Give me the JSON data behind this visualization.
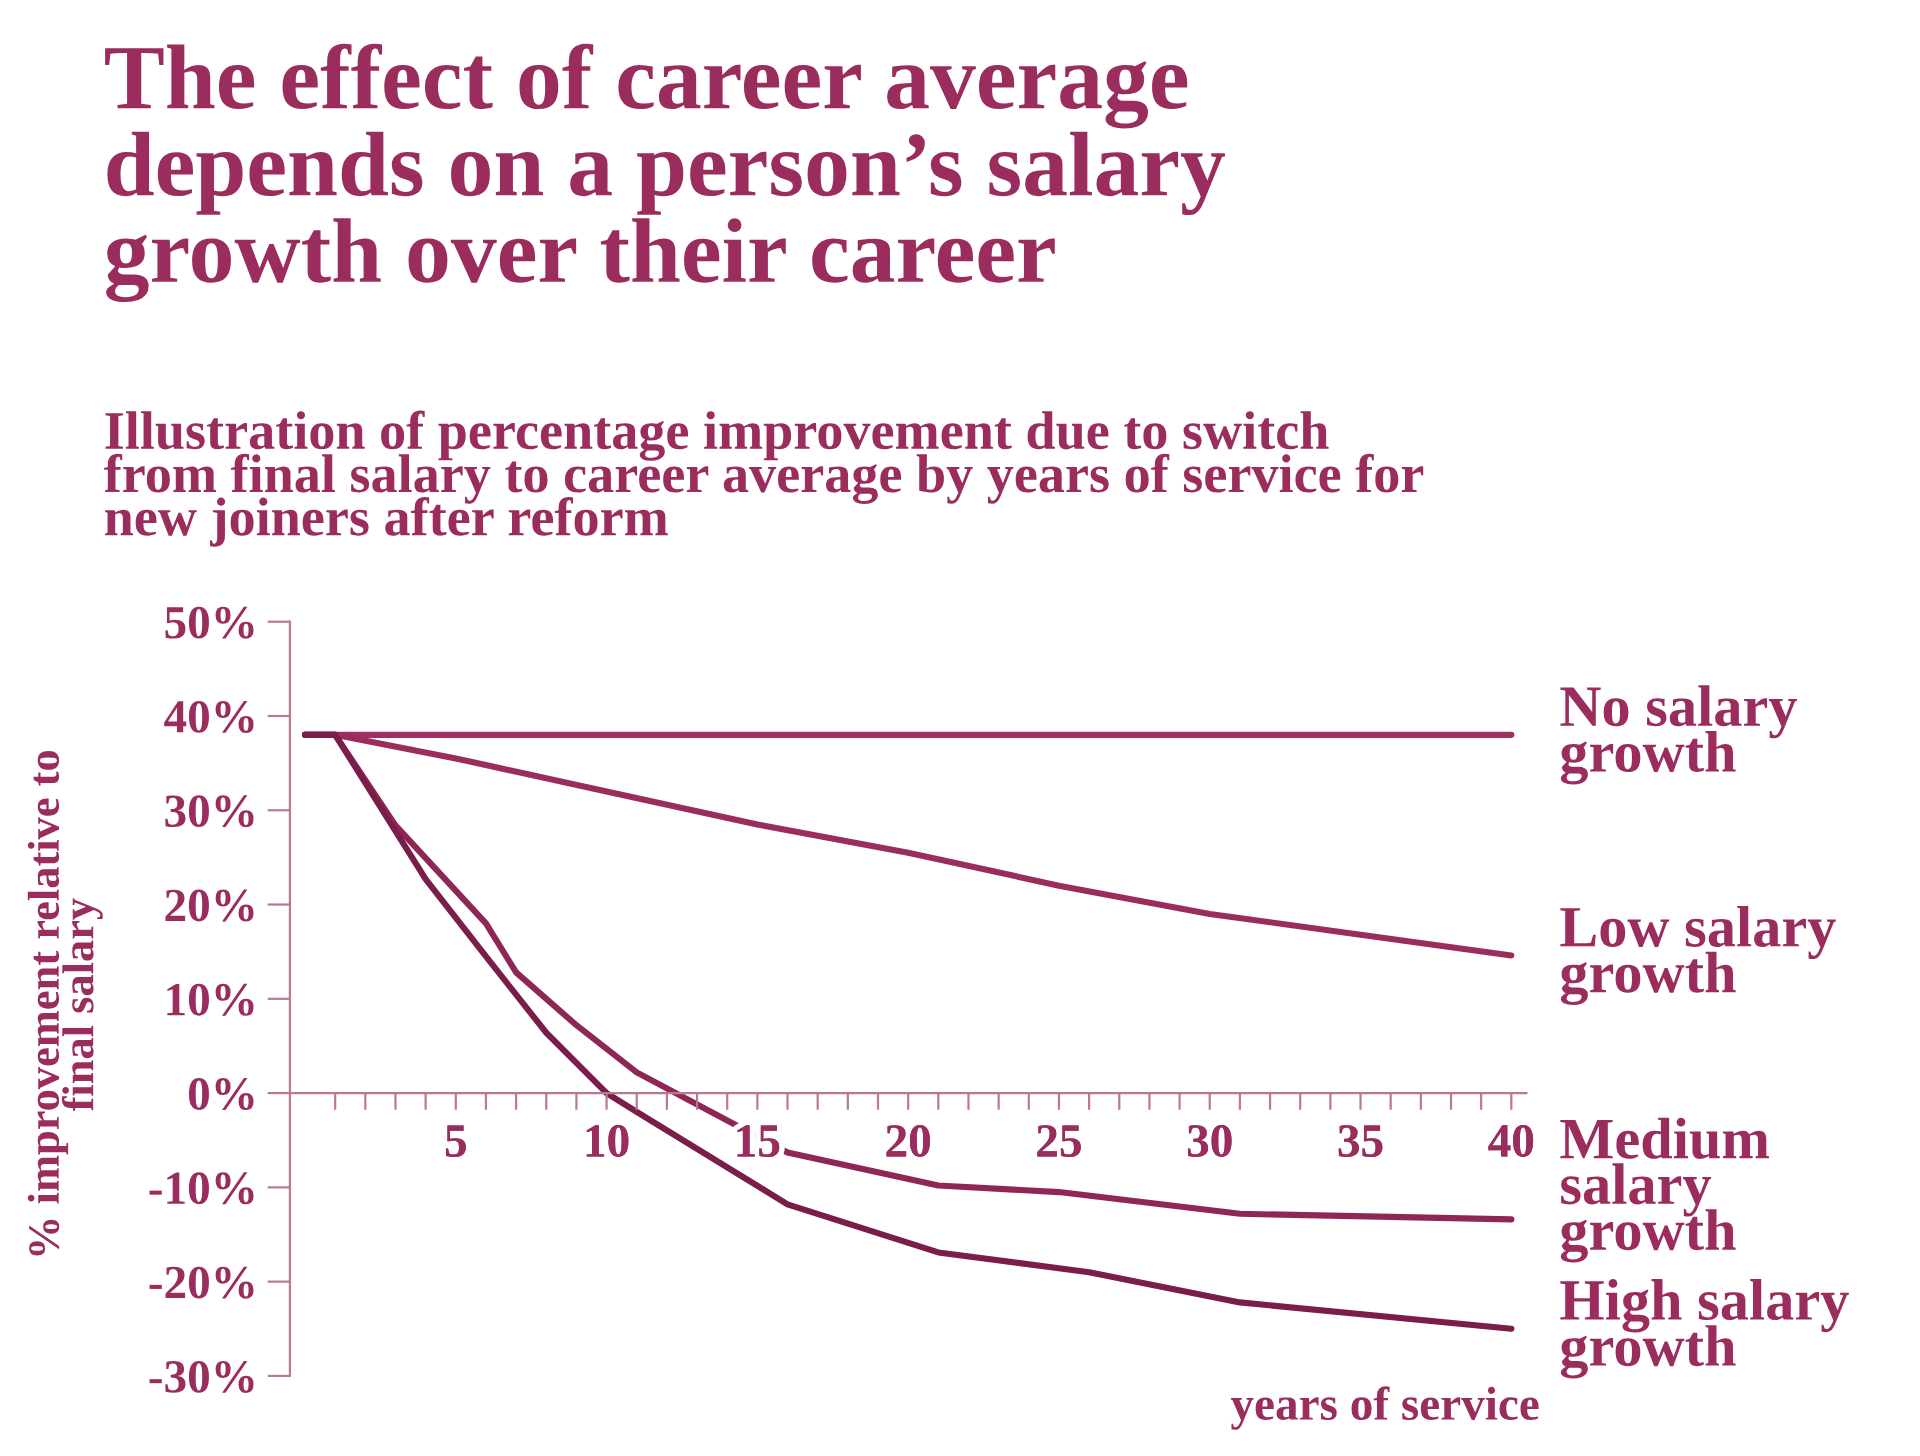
{
  "chart_data": {
    "type": "line",
    "title": "The effect of career average\ndepends on a person’s salary\ngrowth over their career",
    "subtitle": "Illustration of percentage improvement due to switch\nfrom final salary to career average by years of service for\nnew joiners after reform",
    "xlabel": "years of service",
    "ylabel": "% improvement relative to\nfinal salary",
    "series": [
      {
        "name": "No salary\ngrowth",
        "color": "#a0305f",
        "x": [
          0,
          1,
          40
        ],
        "values": [
          38,
          38,
          38
        ]
      },
      {
        "name": "Low salary\ngrowth",
        "color": "#9a2d5c",
        "x": [
          0,
          1,
          5,
          10,
          15,
          20,
          25,
          30,
          35,
          40
        ],
        "values": [
          38,
          38,
          35.5,
          32,
          28.5,
          25.5,
          22,
          19,
          16.8,
          14.6
        ]
      },
      {
        "name": "Medium\nsalary\ngrowth",
        "color": "#8e2656",
        "x": [
          0,
          1,
          3,
          6,
          7,
          9,
          11,
          16,
          21,
          25,
          31,
          40
        ],
        "values": [
          38,
          38,
          28.4,
          18,
          12.8,
          7.2,
          2.2,
          -6.3,
          -9.8,
          -10.5,
          -12.8,
          -13.4
        ]
      },
      {
        "name": "High salary\ngrowth",
        "color": "#7a1d4a",
        "x": [
          0,
          1,
          4,
          6,
          8,
          10,
          11,
          16,
          21,
          26,
          31,
          40
        ],
        "values": [
          38,
          38,
          22.7,
          14.5,
          6.4,
          0,
          -2,
          -11.8,
          -16.9,
          -19,
          -22.2,
          -25
        ]
      }
    ],
    "xlim": [
      -0.5,
      40.5
    ],
    "xticks": [
      {
        "value": 1,
        "label": null
      },
      {
        "value": 2,
        "label": null
      },
      {
        "value": 3,
        "label": null
      },
      {
        "value": 4,
        "label": null
      },
      5,
      {
        "value": 6,
        "label": null
      },
      {
        "value": 7,
        "label": null
      },
      {
        "value": 8,
        "label": null
      },
      {
        "value": 9,
        "label": null
      },
      10,
      {
        "value": 11,
        "label": null
      },
      {
        "value": 12,
        "label": null
      },
      {
        "value": 13,
        "label": null
      },
      {
        "value": 14,
        "label": null
      },
      15,
      {
        "value": 16,
        "label": null
      },
      {
        "value": 17,
        "label": null
      },
      {
        "value": 18,
        "label": null
      },
      {
        "value": 19,
        "label": null
      },
      20,
      {
        "value": 21,
        "label": null
      },
      {
        "value": 22,
        "label": null
      },
      {
        "value": 23,
        "label": null
      },
      {
        "value": 24,
        "label": null
      },
      25,
      {
        "value": 26,
        "label": null
      },
      {
        "value": 27,
        "label": null
      },
      {
        "value": 28,
        "label": null
      },
      {
        "value": 29,
        "label": null
      },
      30,
      {
        "value": 31,
        "label": null
      },
      {
        "value": 32,
        "label": null
      },
      {
        "value": 33,
        "label": null
      },
      {
        "value": 34,
        "label": null
      },
      35,
      {
        "value": 36,
        "label": null
      },
      {
        "value": 37,
        "label": null
      },
      {
        "value": 38,
        "label": null
      },
      {
        "value": 39,
        "label": null
      },
      40
    ],
    "ylim": [
      -30,
      50
    ],
    "yticks": [
      {
        "value": -30,
        "label": "-30%"
      },
      {
        "value": -20,
        "label": "-20%"
      },
      {
        "value": -10,
        "label": "-10%"
      },
      {
        "value": 0,
        "label": "0%"
      },
      {
        "value": 10,
        "label": "10%"
      },
      {
        "value": 20,
        "label": "20%"
      },
      {
        "value": 30,
        "label": "30%"
      },
      {
        "value": 40,
        "label": "40%"
      },
      {
        "value": 50,
        "label": "50%"
      }
    ],
    "grid": false,
    "legend": false,
    "marker": "none",
    "line_style": "solid"
  }
}
